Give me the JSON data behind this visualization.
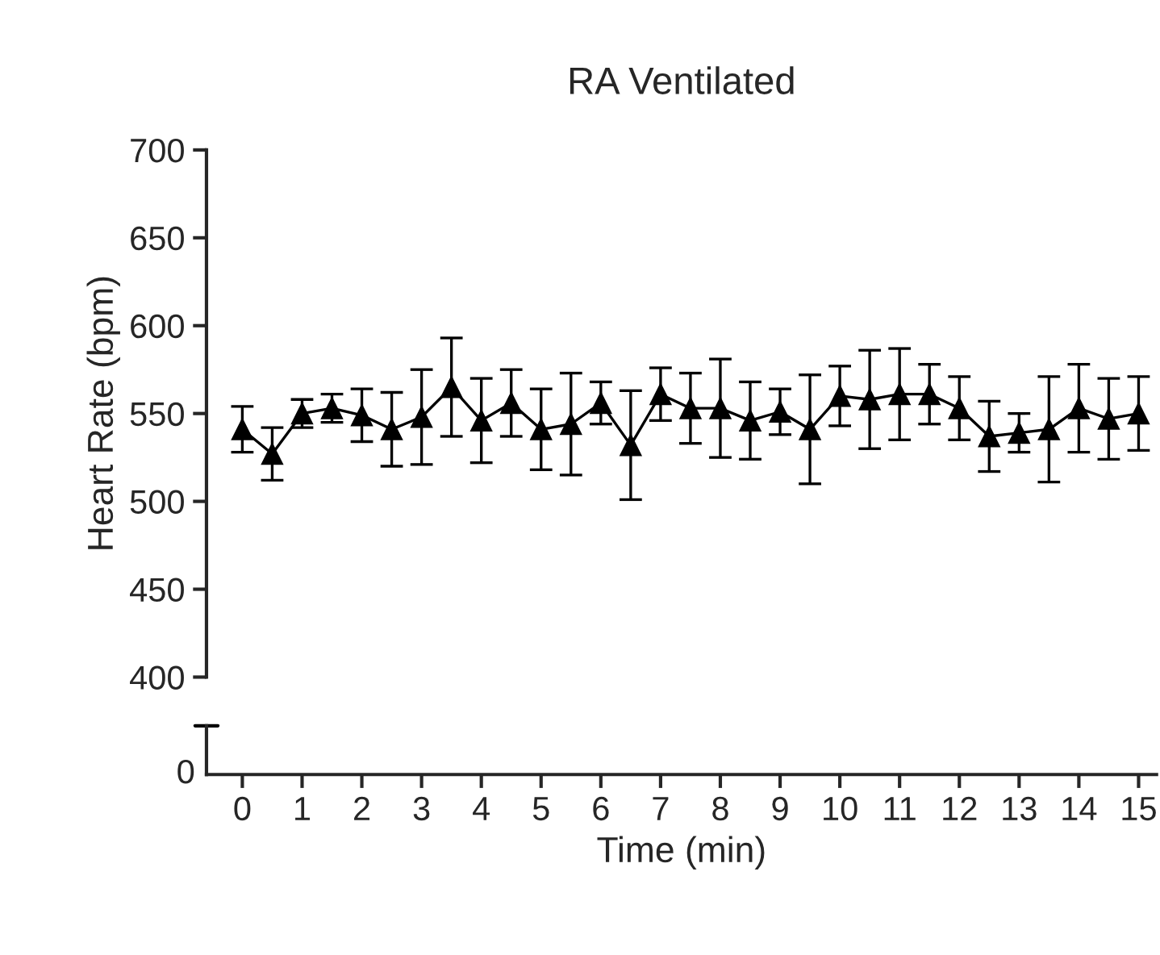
{
  "chart_data": {
    "type": "line",
    "title": "RA Ventilated",
    "xlabel": "Time (min)",
    "ylabel": "Heart Rate (bpm)",
    "annotations": [
      "0"
    ],
    "x": [
      0,
      0.5,
      1,
      1.5,
      2,
      2.5,
      3,
      3.5,
      4,
      4.5,
      5,
      5.5,
      6,
      6.5,
      7,
      7.5,
      8,
      8.5,
      9,
      9.5,
      10,
      10.5,
      11,
      11.5,
      12,
      12.5,
      13,
      13.5,
      14,
      14.5,
      15
    ],
    "series": [
      {
        "color": "#000000",
        "values": [
          541,
          527,
          550,
          553,
          549,
          541,
          548,
          565,
          546,
          556,
          541,
          544,
          556,
          532,
          561,
          553,
          553,
          546,
          551,
          541,
          560,
          558,
          561,
          561,
          553,
          537,
          539,
          541,
          553,
          547,
          550
        ],
        "errors": [
          13,
          15,
          8,
          8,
          15,
          21,
          27,
          28,
          24,
          19,
          23,
          29,
          12,
          31,
          15,
          20,
          28,
          22,
          13,
          31,
          17,
          28,
          26,
          17,
          18,
          20,
          11,
          30,
          25,
          23,
          21
        ]
      }
    ],
    "xlim": [
      -0.6,
      15.3
    ],
    "xticks": [
      0,
      1,
      2,
      3,
      4,
      5,
      6,
      7,
      8,
      9,
      10,
      11,
      12,
      13,
      14,
      15
    ],
    "ylim": [
      400,
      700
    ],
    "yticks": [
      400,
      450,
      500,
      550,
      600,
      650,
      700
    ],
    "marker": "triangle",
    "line_style": "solid",
    "grid": false,
    "legend": false
  }
}
